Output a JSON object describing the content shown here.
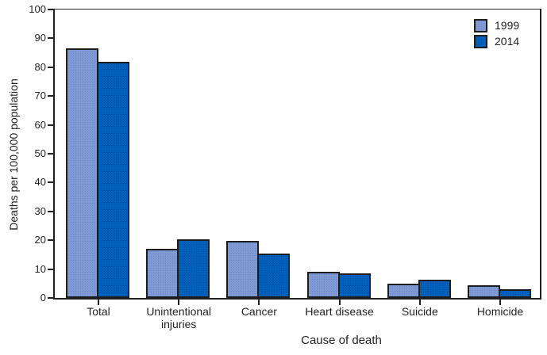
{
  "chart_data": {
    "type": "bar",
    "title": "",
    "categories": [
      "Total",
      "Unintentional injuries",
      "Cancer",
      "Heart disease",
      "Suicide",
      "Homicide"
    ],
    "series": [
      {
        "name": "1999",
        "color": "#7f9ad4",
        "values": [
          86.5,
          17.0,
          19.7,
          9.0,
          4.9,
          4.4
        ]
      },
      {
        "name": "2014",
        "color": "#0061bc",
        "values": [
          82.0,
          20.4,
          15.4,
          8.4,
          6.4,
          2.9
        ]
      }
    ],
    "xlabel": "Cause of death",
    "ylabel": "Deaths per 100,000 population",
    "ylim": [
      0,
      100
    ],
    "yticks": [
      0,
      10,
      20,
      30,
      40,
      50,
      60,
      70,
      80,
      90,
      100
    ],
    "grid": false,
    "legend_position": "top-right",
    "frame_color": "#221f1f",
    "background_color": "#ffffff"
  }
}
